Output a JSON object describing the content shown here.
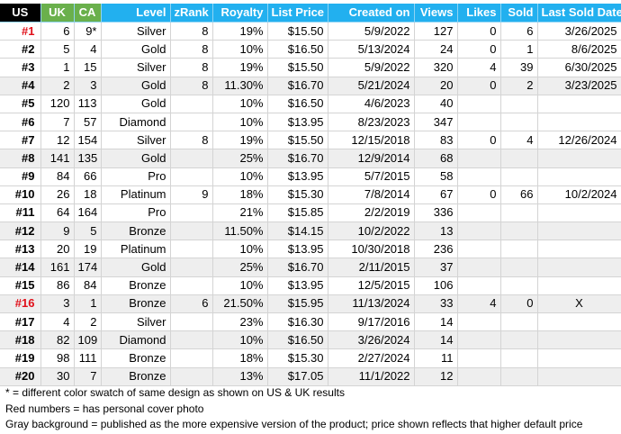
{
  "headers": [
    "US",
    "UK",
    "CA",
    "Level",
    "zRank",
    "Royalty",
    "List Price",
    "Created on",
    "Views",
    "Likes",
    "Sold",
    "Last Sold Date"
  ],
  "rows": [
    {
      "us": "#1",
      "uk": "6",
      "ca": "9*",
      "level": "Silver",
      "zrank": "8",
      "royalty": "19%",
      "price": "$15.50",
      "created": "5/9/2022",
      "views": "127",
      "likes": "0",
      "sold": "6",
      "last_sold": "3/26/2025",
      "red": true,
      "gray": false
    },
    {
      "us": "#2",
      "uk": "5",
      "ca": "4",
      "level": "Gold",
      "zrank": "8",
      "royalty": "10%",
      "price": "$16.50",
      "created": "5/13/2024",
      "views": "24",
      "likes": "0",
      "sold": "1",
      "last_sold": "8/6/2025",
      "red": false,
      "gray": false
    },
    {
      "us": "#3",
      "uk": "1",
      "ca": "15",
      "level": "Silver",
      "zrank": "8",
      "royalty": "19%",
      "price": "$15.50",
      "created": "5/9/2022",
      "views": "320",
      "likes": "4",
      "sold": "39",
      "last_sold": "6/30/2025",
      "red": false,
      "gray": false
    },
    {
      "us": "#4",
      "uk": "2",
      "ca": "3",
      "level": "Gold",
      "zrank": "8",
      "royalty": "11.30%",
      "price": "$16.70",
      "created": "5/21/2024",
      "views": "20",
      "likes": "0",
      "sold": "2",
      "last_sold": "3/23/2025",
      "red": false,
      "gray": true
    },
    {
      "us": "#5",
      "uk": "120",
      "ca": "113",
      "level": "Gold",
      "zrank": "",
      "royalty": "10%",
      "price": "$16.50",
      "created": "4/6/2023",
      "views": "40",
      "likes": "",
      "sold": "",
      "last_sold": "",
      "red": false,
      "gray": false
    },
    {
      "us": "#6",
      "uk": "7",
      "ca": "57",
      "level": "Diamond",
      "zrank": "",
      "royalty": "10%",
      "price": "$13.95",
      "created": "8/23/2023",
      "views": "347",
      "likes": "",
      "sold": "",
      "last_sold": "",
      "red": false,
      "gray": false
    },
    {
      "us": "#7",
      "uk": "12",
      "ca": "154",
      "level": "Silver",
      "zrank": "8",
      "royalty": "19%",
      "price": "$15.50",
      "created": "12/15/2018",
      "views": "83",
      "likes": "0",
      "sold": "4",
      "last_sold": "12/26/2024",
      "red": false,
      "gray": false
    },
    {
      "us": "#8",
      "uk": "141",
      "ca": "135",
      "level": "Gold",
      "zrank": "",
      "royalty": "25%",
      "price": "$16.70",
      "created": "12/9/2014",
      "views": "68",
      "likes": "",
      "sold": "",
      "last_sold": "",
      "red": false,
      "gray": true
    },
    {
      "us": "#9",
      "uk": "84",
      "ca": "66",
      "level": "Pro",
      "zrank": "",
      "royalty": "10%",
      "price": "$13.95",
      "created": "5/7/2015",
      "views": "58",
      "likes": "",
      "sold": "",
      "last_sold": "",
      "red": false,
      "gray": false
    },
    {
      "us": "#10",
      "uk": "26",
      "ca": "18",
      "level": "Platinum",
      "zrank": "9",
      "royalty": "18%",
      "price": "$15.30",
      "created": "7/8/2014",
      "views": "67",
      "likes": "0",
      "sold": "66",
      "last_sold": "10/2/2024",
      "red": false,
      "gray": false
    },
    {
      "us": "#11",
      "uk": "64",
      "ca": "164",
      "level": "Pro",
      "zrank": "",
      "royalty": "21%",
      "price": "$15.85",
      "created": "2/2/2019",
      "views": "336",
      "likes": "",
      "sold": "",
      "last_sold": "",
      "red": false,
      "gray": false
    },
    {
      "us": "#12",
      "uk": "9",
      "ca": "5",
      "level": "Bronze",
      "zrank": "",
      "royalty": "11.50%",
      "price": "$14.15",
      "created": "10/2/2022",
      "views": "13",
      "likes": "",
      "sold": "",
      "last_sold": "",
      "red": false,
      "gray": true
    },
    {
      "us": "#13",
      "uk": "20",
      "ca": "19",
      "level": "Platinum",
      "zrank": "",
      "royalty": "10%",
      "price": "$13.95",
      "created": "10/30/2018",
      "views": "236",
      "likes": "",
      "sold": "",
      "last_sold": "",
      "red": false,
      "gray": false
    },
    {
      "us": "#14",
      "uk": "161",
      "ca": "174",
      "level": "Gold",
      "zrank": "",
      "royalty": "25%",
      "price": "$16.70",
      "created": "2/11/2015",
      "views": "37",
      "likes": "",
      "sold": "",
      "last_sold": "",
      "red": false,
      "gray": true
    },
    {
      "us": "#15",
      "uk": "86",
      "ca": "84",
      "level": "Bronze",
      "zrank": "",
      "royalty": "10%",
      "price": "$13.95",
      "created": "12/5/2015",
      "views": "106",
      "likes": "",
      "sold": "",
      "last_sold": "",
      "red": false,
      "gray": false
    },
    {
      "us": "#16",
      "uk": "3",
      "ca": "1",
      "level": "Bronze",
      "zrank": "6",
      "royalty": "21.50%",
      "price": "$15.95",
      "created": "11/13/2024",
      "views": "33",
      "likes": "4",
      "sold": "0",
      "last_sold": "X",
      "red": true,
      "gray": true
    },
    {
      "us": "#17",
      "uk": "4",
      "ca": "2",
      "level": "Silver",
      "zrank": "",
      "royalty": "23%",
      "price": "$16.30",
      "created": "9/17/2016",
      "views": "14",
      "likes": "",
      "sold": "",
      "last_sold": "",
      "red": false,
      "gray": false
    },
    {
      "us": "#18",
      "uk": "82",
      "ca": "109",
      "level": "Diamond",
      "zrank": "",
      "royalty": "10%",
      "price": "$16.50",
      "created": "3/26/2024",
      "views": "14",
      "likes": "",
      "sold": "",
      "last_sold": "",
      "red": false,
      "gray": true
    },
    {
      "us": "#19",
      "uk": "98",
      "ca": "111",
      "level": "Bronze",
      "zrank": "",
      "royalty": "18%",
      "price": "$15.30",
      "created": "2/27/2024",
      "views": "11",
      "likes": "",
      "sold": "",
      "last_sold": "",
      "red": false,
      "gray": false
    },
    {
      "us": "#20",
      "uk": "30",
      "ca": "7",
      "level": "Bronze",
      "zrank": "",
      "royalty": "13%",
      "price": "$17.05",
      "created": "11/1/2022",
      "views": "12",
      "likes": "",
      "sold": "",
      "last_sold": "",
      "red": false,
      "gray": true
    }
  ],
  "notes": [
    "* = different color swatch of same design as shown on US & UK results",
    "Red numbers = has personal cover photo",
    "Gray background = published as the more expensive version of the product; price shown reflects that higher default price"
  ],
  "colors": {
    "header_blue": "#22b0ef",
    "header_green": "#6ab04c",
    "header_black": "#000000",
    "red_text": "#e0101a",
    "gray_row": "#eeeeee"
  }
}
